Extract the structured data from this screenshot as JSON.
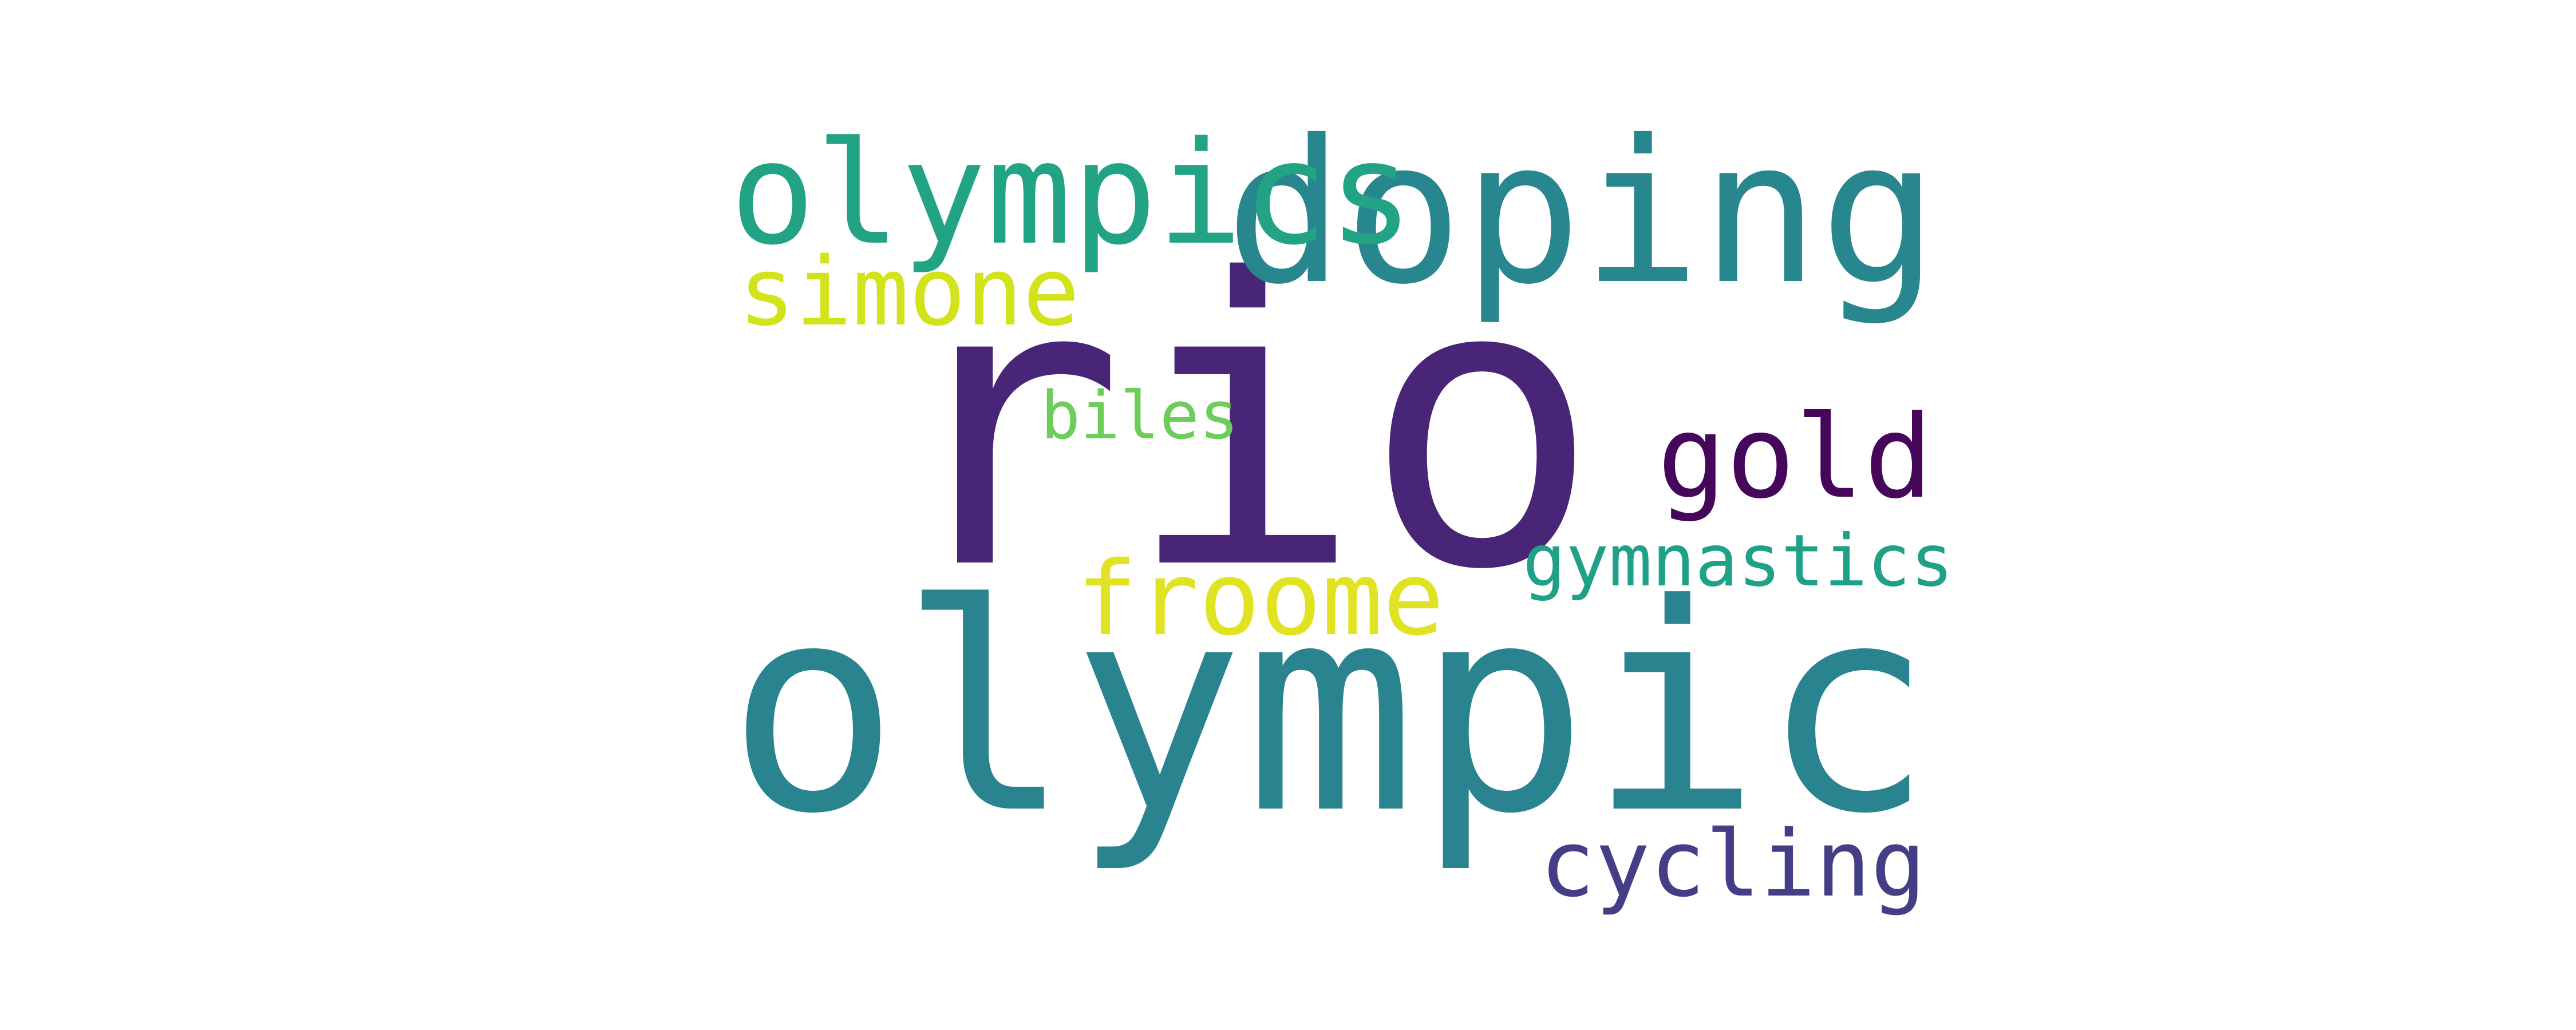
{
  "words": [
    {
      "id": "rio",
      "text": "rio",
      "color": "#482576"
    },
    {
      "id": "olympic",
      "text": "olympic",
      "color": "#2a8490"
    },
    {
      "id": "doping",
      "text": "doping",
      "color": "#28868f"
    },
    {
      "id": "olympics",
      "text": "olympics",
      "color": "#22a384"
    },
    {
      "id": "simone",
      "text": "simone",
      "color": "#d2e21b"
    },
    {
      "id": "gold",
      "text": "gold",
      "color": "#46075a"
    },
    {
      "id": "gymnastics",
      "text": "gymnastics",
      "color": "#1fa187"
    },
    {
      "id": "froome",
      "text": "froome",
      "color": "#e1e322"
    },
    {
      "id": "biles",
      "text": "biles",
      "color": "#6ccd5a"
    },
    {
      "id": "cycling",
      "text": "cycling",
      "color": "#433e85"
    }
  ]
}
